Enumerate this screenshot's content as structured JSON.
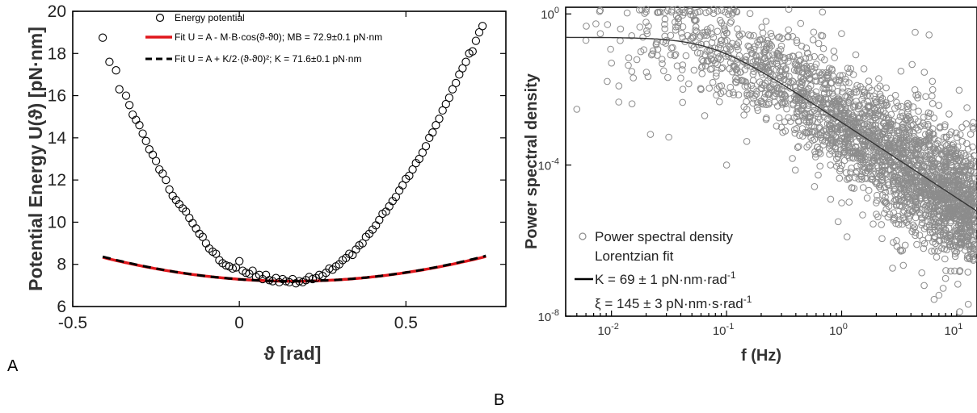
{
  "panels": {
    "a_label": "A",
    "b_label": "B"
  },
  "chart_data": [
    {
      "type": "scatter",
      "panel": "A",
      "xlabel": "ϑ [rad]",
      "ylabel": "Potential Energy U(ϑ) [pN·nm]",
      "xlim": [
        -0.5,
        0.8
      ],
      "ylim": [
        6,
        20
      ],
      "x_ticks": [
        "-0.5",
        "0",
        "0.5"
      ],
      "x_tick_values": [
        -0.5,
        0,
        0.5
      ],
      "y_ticks": [
        "6",
        "8",
        "10",
        "12",
        "14",
        "16",
        "18",
        "20"
      ],
      "y_tick_values": [
        6,
        8,
        10,
        12,
        14,
        16,
        18,
        20
      ],
      "grid": false,
      "legend_position": "top-left",
      "legend": [
        {
          "name": "Energy potential",
          "style": "open-circle",
          "color": "#000000"
        },
        {
          "name": "Fit U = A - M·B·cos(ϑ-ϑ0); MB = 72.9±0.1 pN·nm",
          "style": "solid-line",
          "color": "#e0161b"
        },
        {
          "name": "Fit U = A + K/2·(ϑ-ϑ0)²; K = 71.6±0.1 pN·nm",
          "style": "dashed-line",
          "color": "#000000"
        }
      ],
      "fit_params": {
        "theta0": 0.16,
        "U_min": 7.2,
        "K": 71.6,
        "x_range": [
          -0.41,
          0.74
        ]
      },
      "series": [
        {
          "name": "Energy potential",
          "x": [
            -0.41,
            -0.39,
            -0.37,
            -0.36,
            -0.34,
            -0.33,
            -0.32,
            -0.31,
            -0.3,
            -0.29,
            -0.28,
            -0.27,
            -0.26,
            -0.25,
            -0.24,
            -0.23,
            -0.22,
            -0.21,
            -0.2,
            -0.19,
            -0.18,
            -0.17,
            -0.16,
            -0.15,
            -0.14,
            -0.13,
            -0.12,
            -0.11,
            -0.1,
            -0.09,
            -0.08,
            -0.07,
            -0.06,
            -0.05,
            -0.04,
            -0.03,
            -0.02,
            -0.01,
            0.0,
            0.01,
            0.02,
            0.03,
            0.04,
            0.05,
            0.06,
            0.07,
            0.08,
            0.09,
            0.1,
            0.11,
            0.12,
            0.13,
            0.14,
            0.15,
            0.16,
            0.17,
            0.18,
            0.19,
            0.2,
            0.21,
            0.22,
            0.23,
            0.24,
            0.25,
            0.26,
            0.27,
            0.28,
            0.29,
            0.3,
            0.31,
            0.32,
            0.33,
            0.34,
            0.35,
            0.36,
            0.37,
            0.38,
            0.39,
            0.4,
            0.41,
            0.42,
            0.43,
            0.44,
            0.45,
            0.46,
            0.47,
            0.48,
            0.49,
            0.5,
            0.51,
            0.52,
            0.53,
            0.54,
            0.55,
            0.56,
            0.57,
            0.58,
            0.59,
            0.6,
            0.61,
            0.62,
            0.63,
            0.64,
            0.65,
            0.66,
            0.67,
            0.68,
            0.69,
            0.7,
            0.71,
            0.72,
            0.73
          ],
          "y": [
            18.75,
            17.6,
            17.2,
            16.3,
            16.0,
            15.55,
            15.1,
            14.85,
            14.6,
            14.2,
            13.85,
            13.45,
            13.2,
            12.9,
            12.5,
            12.3,
            12.0,
            11.55,
            11.25,
            11.05,
            10.85,
            10.65,
            10.5,
            10.2,
            9.95,
            9.7,
            9.45,
            9.3,
            9.0,
            8.75,
            8.6,
            8.5,
            8.2,
            8.05,
            7.95,
            7.9,
            7.8,
            7.85,
            8.15,
            7.7,
            7.6,
            7.55,
            7.7,
            7.4,
            7.5,
            7.3,
            7.5,
            7.25,
            7.2,
            7.35,
            7.15,
            7.3,
            7.2,
            7.15,
            7.3,
            7.1,
            7.2,
            7.15,
            7.25,
            7.4,
            7.3,
            7.35,
            7.5,
            7.45,
            7.6,
            7.8,
            7.75,
            7.9,
            8.0,
            8.2,
            8.3,
            8.5,
            8.45,
            8.7,
            8.9,
            9.0,
            9.3,
            9.45,
            9.65,
            9.85,
            10.1,
            10.4,
            10.5,
            10.75,
            11.0,
            11.2,
            11.5,
            11.75,
            12.05,
            12.2,
            12.5,
            12.8,
            13.0,
            13.3,
            13.6,
            14.0,
            14.25,
            14.6,
            14.9,
            15.3,
            15.6,
            15.9,
            16.3,
            16.6,
            17.0,
            17.3,
            17.6,
            18.0,
            18.1,
            18.6,
            19.0,
            19.3
          ]
        }
      ]
    },
    {
      "type": "scatter",
      "panel": "B",
      "xlabel": "f (Hz)",
      "ylabel": "Power spectral density",
      "x_scale": "log",
      "y_scale": "log",
      "xlim": [
        0.004,
        15
      ],
      "ylim": [
        1e-08,
        1.5
      ],
      "x_ticks": [
        "10-2",
        "10-1",
        "100",
        "101"
      ],
      "x_tick_values": [
        0.01,
        0.1,
        1,
        10
      ],
      "y_ticks": [
        "100",
        "10-4",
        "10-8"
      ],
      "y_tick_values": [
        1,
        0.0001,
        1e-08
      ],
      "tick_exponent_base": "10",
      "x_tick_exponents": [
        "-2",
        "-1",
        "0",
        "1"
      ],
      "y_tick_exponents": [
        "0",
        "-4",
        "-8"
      ],
      "grid": false,
      "legend_position": "bottom-left",
      "legend": [
        {
          "name": "Power spectral density",
          "style": "open-circle",
          "color": "#8c8c8c"
        },
        {
          "name": "Lorentzian fit",
          "style": "solid-line",
          "color": "#000000"
        }
      ],
      "legend_extra": {
        "k_prefix": "K = 69 ± 1 pN·nm·rad",
        "k_exp": "-1",
        "xi_prefix": "ξ = 145 ± 3 pN·nm·s·rad",
        "xi_exp": "-1"
      },
      "fit": {
        "plateau": 0.24,
        "corner_frequency_hz": 0.075,
        "x_range": [
          0.004,
          15
        ]
      },
      "series": [
        {
          "name": "Power spectral density",
          "note_points": "thousands of points; sampled scatter reproduced around the Lorentzian fit",
          "x": [
            0.005,
            0.006,
            0.008,
            0.01,
            0.012,
            0.015,
            0.018,
            0.02,
            0.025,
            0.03,
            0.04,
            0.05,
            0.06,
            0.08,
            0.1,
            0.12,
            0.15,
            0.2,
            0.3,
            0.5,
            0.8,
            1,
            2,
            3,
            5,
            8,
            10,
            14
          ],
          "y": [
            0.003,
            0.2,
            0.3,
            0.05,
            0.4,
            0.03,
            0.1,
            0.6,
            0.08,
            0.2,
            0.02,
            0.15,
            0.01,
            0.05,
            0.0001,
            0.02,
            0.003,
            0.005,
            0.001,
            0.0003,
            0.0001,
            1e-05,
            5e-06,
            1e-06,
            3e-06,
            1e-07,
            5e-07,
            1e-06
          ]
        },
        {
          "name": "Lorentzian fit",
          "x": [
            0.004,
            0.01,
            0.03,
            0.05,
            0.075,
            0.1,
            0.2,
            0.5,
            1,
            2,
            5,
            10,
            15
          ],
          "y": [
            0.24,
            0.237,
            0.2,
            0.166,
            0.12,
            0.086,
            0.029,
            0.0052,
            0.0013,
            0.00034,
            5.4e-05,
            1.35e-05,
            6e-06
          ]
        }
      ]
    }
  ]
}
